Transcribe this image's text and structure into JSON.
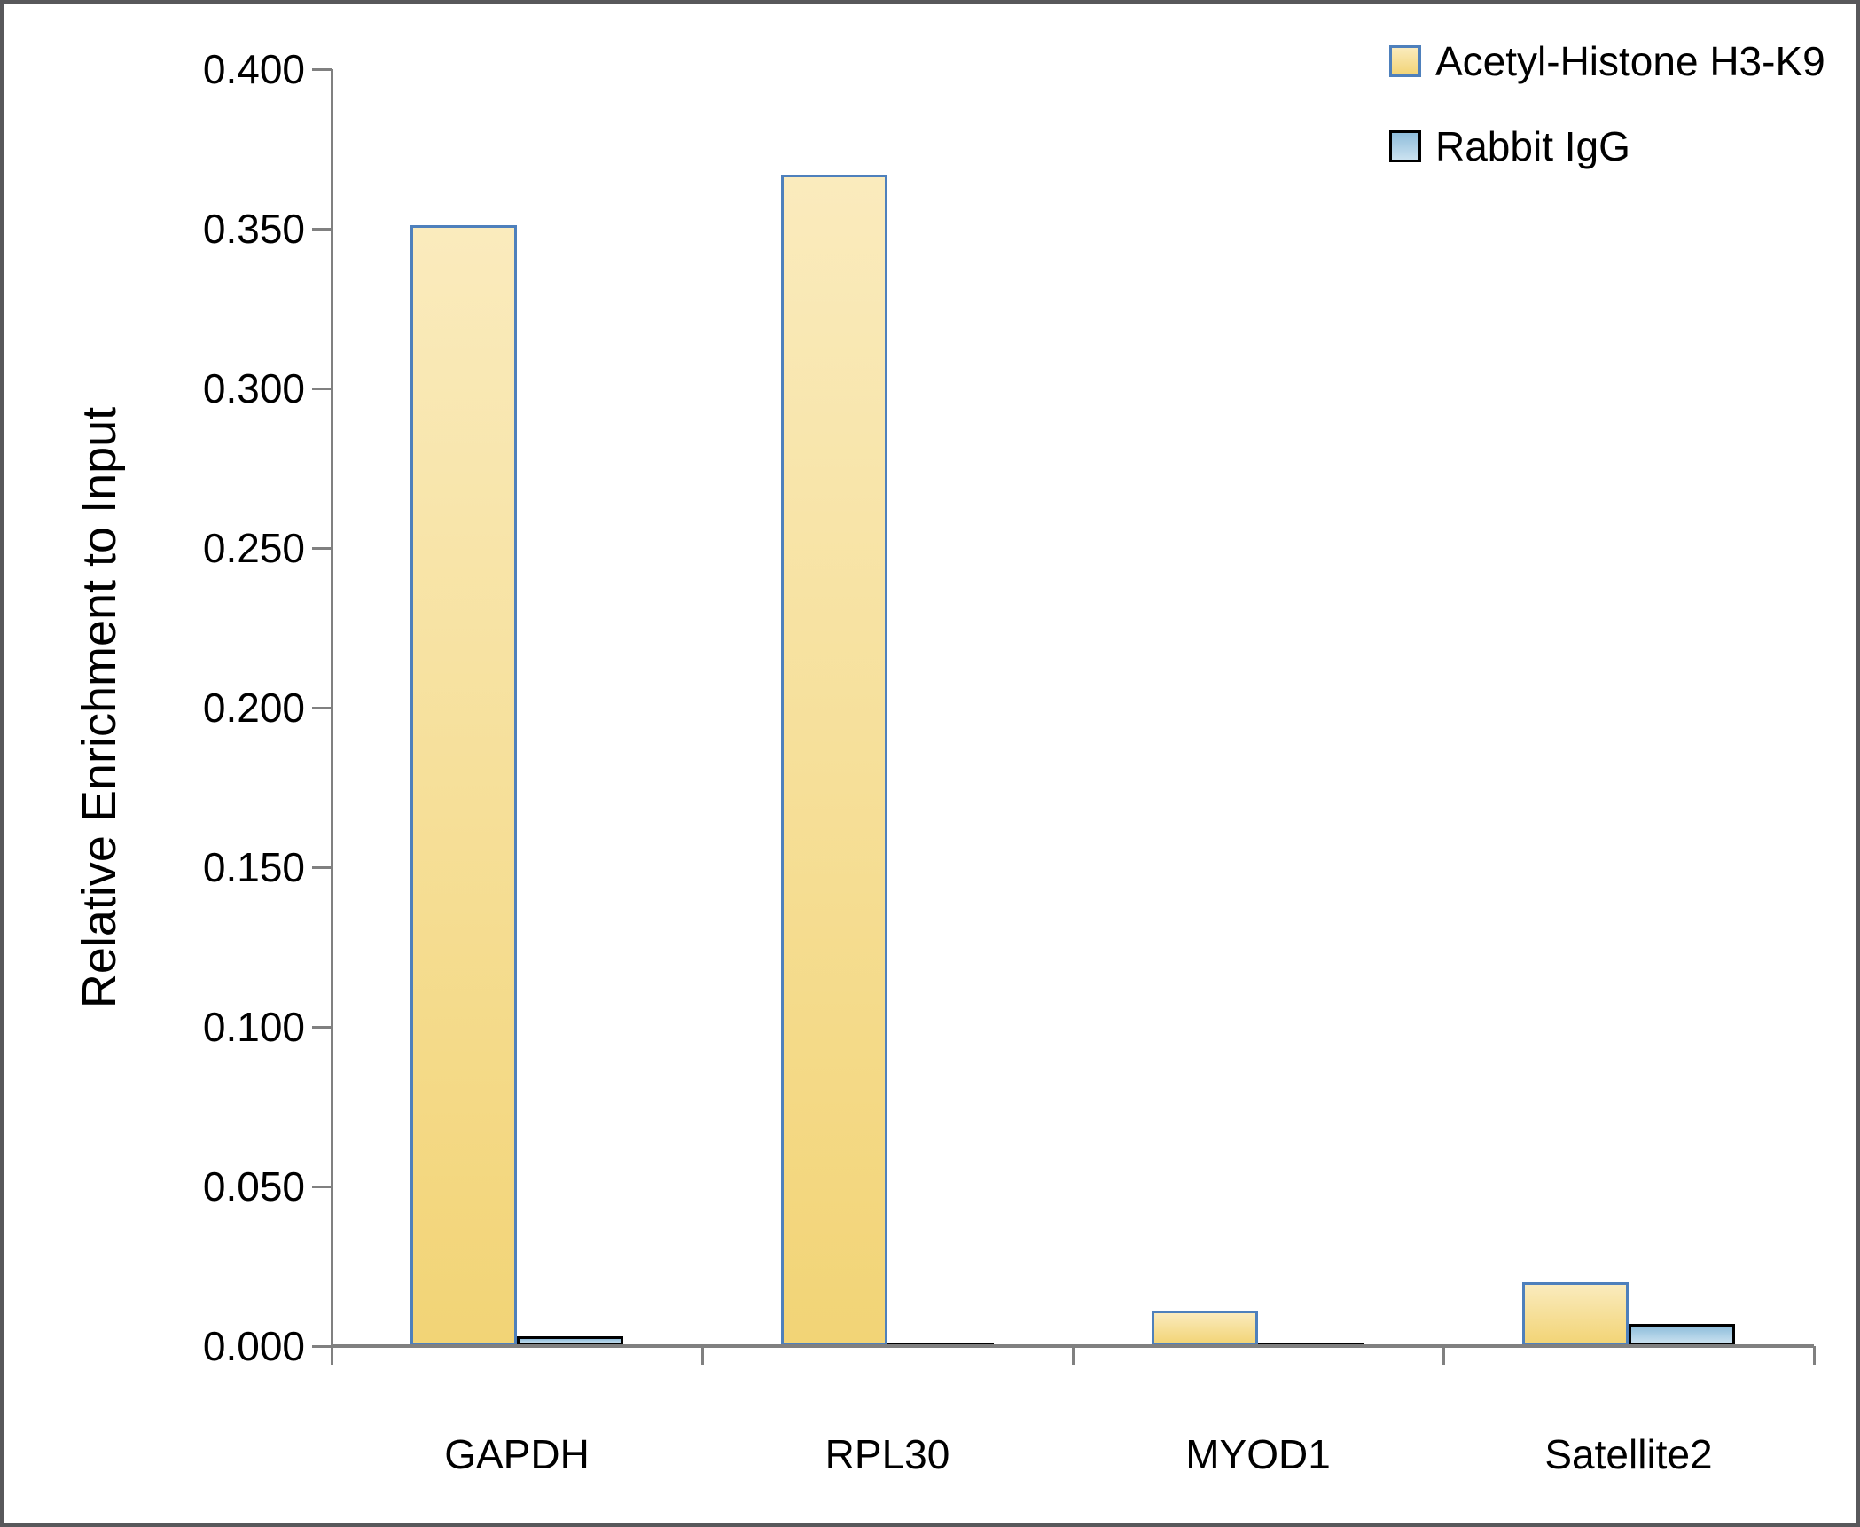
{
  "chart_data": {
    "type": "bar",
    "title": "",
    "xlabel": "",
    "ylabel": "Relative Enrichment to Input",
    "categories": [
      "GAPDH",
      "RPL30",
      "MYOD1",
      "Satellite2"
    ],
    "series": [
      {
        "name": "Acetyl-Histone H3-K9",
        "values": [
          0.351,
          0.367,
          0.011,
          0.02
        ],
        "fill_top": "#FAEBBD",
        "fill_bottom": "#F2D476",
        "border": "#4E80BC"
      },
      {
        "name": "Rabbit IgG",
        "values": [
          0.003,
          0.001,
          0.001,
          0.007
        ],
        "fill_top": "#8FBDDB",
        "fill_bottom": "#CBE2F0",
        "border": "#000000"
      }
    ],
    "ylim": [
      0,
      0.4
    ],
    "y_tick_step": 0.05,
    "y_tick_decimals": 3,
    "grid": false,
    "legend_position": "top-right",
    "colors": {
      "axis": "#808080",
      "text": "#000000",
      "frame": "#58585B"
    }
  }
}
